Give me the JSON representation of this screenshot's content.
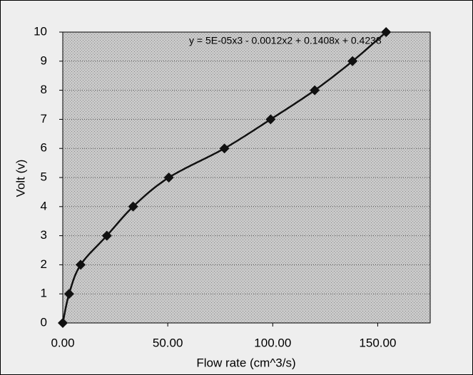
{
  "chart_data": {
    "type": "scatter",
    "equation": "y = 5E-05x3 - 0.0012x2 + 0.1408x + 0.4238",
    "x_label": "Flow rate (cm^3/s)",
    "y_label": "Volt (v)",
    "series": [
      {
        "color": "#111111",
        "x": [
          0,
          3,
          8.5,
          21,
          33.5,
          50.5,
          77,
          99,
          120,
          138,
          154
        ],
        "values": [
          0,
          1,
          2,
          3,
          4,
          5,
          6,
          7,
          8,
          9,
          10
        ]
      }
    ],
    "trendline": true,
    "xlim": [
      0,
      175
    ],
    "xticks": [
      {
        "value": 0,
        "label": "0.00"
      },
      {
        "value": 50,
        "label": "50.00"
      },
      {
        "value": 100,
        "label": "100.00"
      },
      {
        "value": 150,
        "label": "150.00"
      }
    ],
    "ylim": [
      0,
      10
    ],
    "yticks": [
      0,
      1,
      2,
      3,
      4,
      5,
      6,
      7,
      8,
      9,
      10
    ],
    "grid": true
  }
}
